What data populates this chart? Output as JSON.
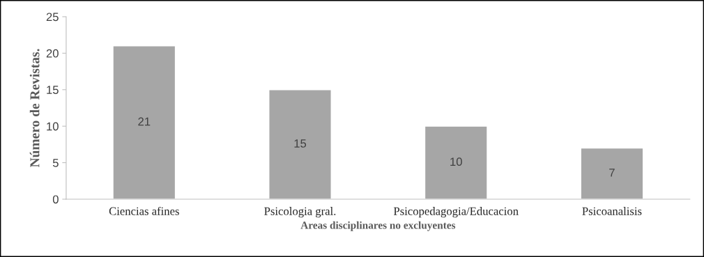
{
  "chart_data": {
    "type": "bar",
    "xlabel": "Areas disciplinares no excluyentes",
    "ylabel": "Número de Revistas.",
    "categories": [
      "Ciencias afines",
      "Psicologia gral.",
      "Psicopedagogia/Educacion",
      "Psicoanalisis"
    ],
    "values": [
      21,
      15,
      10,
      7
    ],
    "color": "#a6a6a6",
    "ylim": [
      0,
      25
    ],
    "yticks": [
      0,
      5,
      10,
      15,
      20,
      25
    ],
    "data_labels": true,
    "grid": false,
    "legend": false
  }
}
